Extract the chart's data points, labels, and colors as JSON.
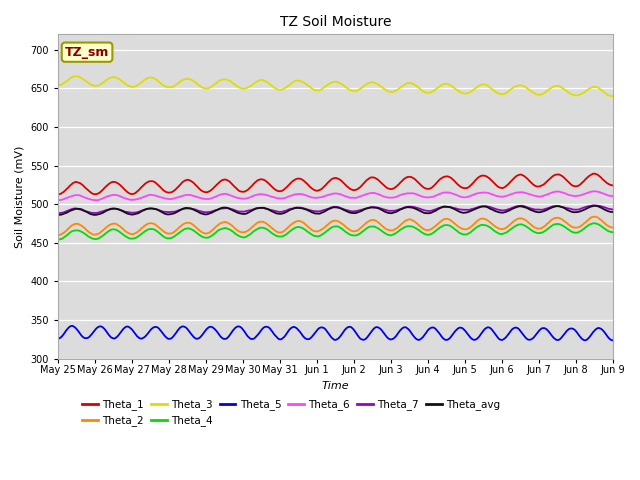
{
  "title": "TZ Soil Moisture",
  "ylabel": "Soil Moisture (mV)",
  "xlabel": "Time",
  "annotation": "TZ_sm",
  "ylim": [
    300,
    720
  ],
  "yticks": [
    300,
    350,
    400,
    450,
    500,
    550,
    600,
    650,
    700
  ],
  "date_labels": [
    "May 25",
    "May 26",
    "May 27",
    "May 28",
    "May 29",
    "May 30",
    "May 31",
    "Jun 1",
    "Jun 2",
    "Jun 3",
    "Jun 4",
    "Jun 5",
    "Jun 6",
    "Jun 7",
    "Jun 8",
    "Jun 9"
  ],
  "n_points": 480,
  "background_color": "#dcdcdc",
  "series": {
    "Theta_1": {
      "color": "#dd0000",
      "base": 520,
      "amplitude": 8,
      "trend": 0.025,
      "period": 1.0
    },
    "Theta_2": {
      "color": "#ff8800",
      "base": 467,
      "amplitude": 7,
      "trend": 0.02,
      "period": 1.0
    },
    "Theta_3": {
      "color": "#dddd00",
      "base": 660,
      "amplitude": 6,
      "trend": -0.03,
      "period": 1.0
    },
    "Theta_4": {
      "color": "#00dd00",
      "base": 460,
      "amplitude": 6,
      "trend": 0.02,
      "period": 1.0
    },
    "Theta_5": {
      "color": "#0000ee",
      "base": 334,
      "amplitude": 8,
      "trend": -0.005,
      "period": 0.75
    },
    "Theta_6": {
      "color": "#ff44ff",
      "base": 508,
      "amplitude": 3,
      "trend": 0.012,
      "period": 1.0
    },
    "Theta_7": {
      "color": "#9900cc",
      "base": 491,
      "amplitude": 2.5,
      "trend": 0.01,
      "period": 1.0
    },
    "Theta_avg": {
      "color": "#111111",
      "base": 490,
      "amplitude": 4,
      "trend": 0.008,
      "period": 1.0
    }
  },
  "legend_order": [
    "Theta_1",
    "Theta_2",
    "Theta_3",
    "Theta_4",
    "Theta_5",
    "Theta_6",
    "Theta_7",
    "Theta_avg"
  ],
  "legend_colors": {
    "Theta_1": "#dd0000",
    "Theta_2": "#ff8800",
    "Theta_3": "#dddd00",
    "Theta_4": "#00dd00",
    "Theta_5": "#0000ee",
    "Theta_6": "#ff44ff",
    "Theta_7": "#9900cc",
    "Theta_avg": "#111111"
  }
}
